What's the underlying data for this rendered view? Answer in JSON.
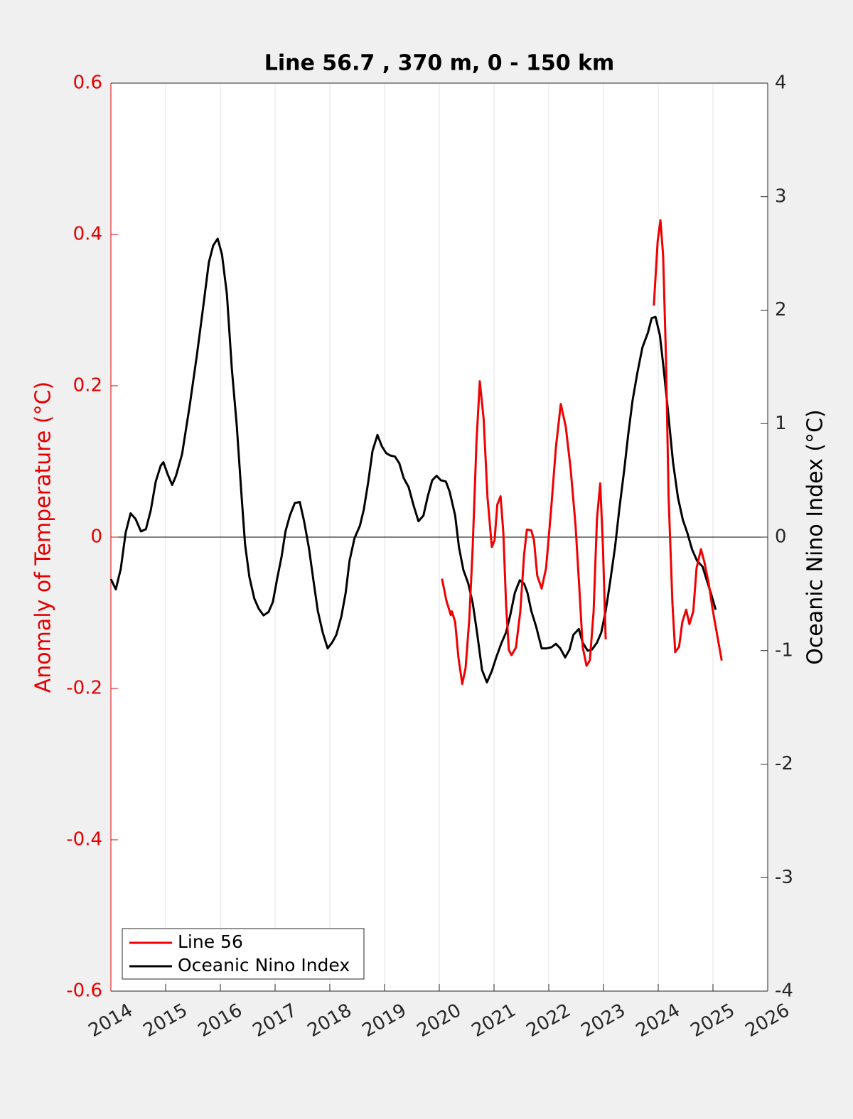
{
  "chart_data": {
    "type": "line",
    "title": "Line 56.7 , 370 m, 0 - 150 km",
    "ylabel": "Anomaly of Temperature (°C)",
    "y2label": "Oceanic Nino Index (°C)",
    "xlim": [
      2014,
      2026
    ],
    "xticks": [
      2014,
      2015,
      2016,
      2017,
      2018,
      2019,
      2020,
      2021,
      2022,
      2023,
      2024,
      2025,
      2026
    ],
    "ylim": [
      -0.6,
      0.6
    ],
    "yticks": [
      -0.6,
      -0.4,
      -0.2,
      0,
      0.2,
      0.4,
      0.6
    ],
    "y2lim": [
      -4,
      4
    ],
    "y2ticks": [
      -4,
      -3,
      -2,
      -1,
      0,
      1,
      2,
      3,
      4
    ],
    "ycolor": "#e60000",
    "grid": true,
    "zero_line": true,
    "legend": "lower left",
    "series": [
      {
        "name": "Line 56",
        "color": "#f00000",
        "x": [
          2020.05,
          2020.13,
          2020.21,
          2020.23,
          2020.29,
          2020.35,
          2020.42,
          2020.48,
          2020.55,
          2020.61,
          2020.68,
          2020.74,
          2020.81,
          2020.88,
          2020.96,
          2021.01,
          2021.06,
          2021.12,
          2021.17,
          2021.22,
          2021.27,
          2021.32,
          2021.4,
          2021.48,
          2021.55,
          2021.6,
          2021.68,
          2021.73,
          2021.79,
          2021.87,
          2021.95,
          2022.04,
          2022.13,
          2022.22,
          2022.31,
          2022.4,
          2022.49,
          2022.56,
          2022.62,
          2022.69,
          2022.75,
          2022.82,
          2022.88,
          2022.94,
          2022.99,
          2023.04,
          2023.5,
          2023.92,
          2023.99,
          2024.04,
          2024.09,
          2024.14,
          2024.19,
          2024.26,
          2024.31,
          2024.38,
          2024.44,
          2024.51,
          2024.57,
          2024.64,
          2024.7,
          2024.78,
          2024.84,
          2024.92,
          2025.0,
          2025.08,
          2025.16
        ],
        "values": [
          -0.055,
          -0.084,
          -0.103,
          -0.098,
          -0.112,
          -0.159,
          -0.194,
          -0.173,
          -0.107,
          -0.013,
          0.128,
          0.206,
          0.156,
          0.053,
          -0.013,
          -0.004,
          0.043,
          0.054,
          0.006,
          -0.088,
          -0.149,
          -0.156,
          -0.146,
          -0.098,
          -0.023,
          0.01,
          0.009,
          -0.004,
          -0.051,
          -0.068,
          -0.041,
          0.034,
          0.118,
          0.176,
          0.146,
          0.09,
          0.015,
          -0.069,
          -0.145,
          -0.17,
          -0.163,
          -0.098,
          0.024,
          0.071,
          -0.013,
          -0.135,
          null,
          0.306,
          0.391,
          0.419,
          0.372,
          0.24,
          0.053,
          -0.088,
          -0.152,
          -0.145,
          -0.112,
          -0.096,
          -0.115,
          -0.098,
          -0.041,
          -0.016,
          -0.032,
          -0.06,
          -0.098,
          -0.131,
          -0.163
        ]
      },
      {
        "name": "Oceanic Nino Index",
        "color": "#000000",
        "axis": "y2",
        "x": [
          2014.0,
          2014.09,
          2014.18,
          2014.27,
          2014.36,
          2014.45,
          2014.55,
          2014.64,
          2014.73,
          2014.82,
          2014.91,
          2014.96,
          2015.04,
          2015.12,
          2015.19,
          2015.3,
          2015.44,
          2015.57,
          2015.69,
          2015.79,
          2015.87,
          2015.95,
          2016.03,
          2016.12,
          2016.21,
          2016.3,
          2016.38,
          2016.45,
          2016.53,
          2016.62,
          2016.7,
          2016.79,
          2016.88,
          2016.96,
          2017.04,
          2017.12,
          2017.19,
          2017.27,
          2017.36,
          2017.45,
          2017.53,
          2017.62,
          2017.7,
          2017.78,
          2017.87,
          2017.96,
          2018.04,
          2018.12,
          2018.21,
          2018.29,
          2018.36,
          2018.45,
          2018.55,
          2018.62,
          2018.7,
          2018.78,
          2018.87,
          2018.95,
          2019.03,
          2019.1,
          2019.19,
          2019.27,
          2019.35,
          2019.44,
          2019.53,
          2019.62,
          2019.71,
          2019.79,
          2019.87,
          2019.95,
          2020.03,
          2020.12,
          2020.19,
          2020.29,
          2020.36,
          2020.44,
          2020.53,
          2020.61,
          2020.69,
          2020.78,
          2020.87,
          2020.96,
          2021.04,
          2021.13,
          2021.22,
          2021.3,
          2021.38,
          2021.47,
          2021.55,
          2021.61,
          2021.68,
          2021.77,
          2021.87,
          2021.96,
          2022.05,
          2022.13,
          2022.21,
          2022.3,
          2022.38,
          2022.45,
          2022.55,
          2022.62,
          2022.71,
          2022.79,
          2022.88,
          2022.96,
          2023.04,
          2023.12,
          2023.21,
          2023.29,
          2023.38,
          2023.45,
          2023.53,
          2023.62,
          2023.71,
          2023.81,
          2023.88,
          2023.95,
          2024.03,
          2024.1,
          2024.18,
          2024.27,
          2024.36,
          2024.45,
          2024.53,
          2024.62,
          2024.71,
          2024.81,
          2024.88,
          2024.96,
          2025.05
        ],
        "values": [
          -0.37,
          -0.46,
          -0.28,
          0.04,
          0.21,
          0.16,
          0.05,
          0.07,
          0.24,
          0.49,
          0.63,
          0.66,
          0.55,
          0.46,
          0.54,
          0.73,
          1.16,
          1.6,
          2.04,
          2.42,
          2.57,
          2.63,
          2.49,
          2.14,
          1.48,
          0.98,
          0.41,
          -0.06,
          -0.35,
          -0.54,
          -0.63,
          -0.69,
          -0.66,
          -0.57,
          -0.36,
          -0.17,
          0.05,
          0.19,
          0.3,
          0.31,
          0.14,
          -0.1,
          -0.38,
          -0.65,
          -0.84,
          -0.98,
          -0.93,
          -0.86,
          -0.7,
          -0.49,
          -0.21,
          -0.01,
          0.1,
          0.24,
          0.48,
          0.76,
          0.9,
          0.8,
          0.74,
          0.72,
          0.71,
          0.65,
          0.52,
          0.44,
          0.28,
          0.14,
          0.19,
          0.36,
          0.5,
          0.54,
          0.5,
          0.49,
          0.4,
          0.19,
          -0.09,
          -0.29,
          -0.41,
          -0.58,
          -0.84,
          -1.17,
          -1.28,
          -1.18,
          -1.06,
          -0.94,
          -0.84,
          -0.68,
          -0.49,
          -0.38,
          -0.41,
          -0.49,
          -0.65,
          -0.79,
          -0.98,
          -0.98,
          -0.97,
          -0.94,
          -0.98,
          -1.06,
          -0.99,
          -0.86,
          -0.81,
          -0.93,
          -1.0,
          -0.99,
          -0.93,
          -0.84,
          -0.65,
          -0.4,
          -0.09,
          0.25,
          0.6,
          0.9,
          1.2,
          1.45,
          1.67,
          1.8,
          1.93,
          1.94,
          1.78,
          1.48,
          1.1,
          0.66,
          0.35,
          0.15,
          0.04,
          -0.11,
          -0.21,
          -0.26,
          -0.37,
          -0.49,
          -0.64
        ]
      }
    ]
  }
}
